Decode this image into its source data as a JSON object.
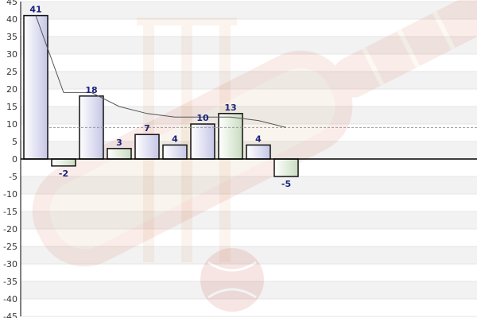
{
  "chart_data": {
    "type": "bar",
    "title": "",
    "xlabel": "",
    "ylabel": "",
    "ylim": [
      -45,
      45
    ],
    "ytick_step": 5,
    "grid": true,
    "values": [
      41,
      -2,
      18,
      3,
      7,
      4,
      10,
      13,
      4,
      -5
    ],
    "data_labels": [
      "41",
      "-2",
      "18",
      "3",
      "7",
      "4",
      "10",
      "13",
      "4",
      "-5"
    ],
    "bar_styles": [
      "blue",
      "green",
      "blue",
      "green",
      "blue",
      "blue",
      "blue",
      "green",
      "blue",
      "green"
    ],
    "trend_line": [
      41,
      19,
      19,
      15,
      13,
      12,
      12,
      12,
      11,
      9
    ],
    "average_line": 9,
    "colors": {
      "bar_blue_light": "#ffffff",
      "bar_blue_dark": "#c5c6e6",
      "bar_green_light": "#ffffff",
      "bar_green_dark": "#c9dcc0",
      "bar_stroke": "#111111",
      "grid_band": "#f2f2f2",
      "grid_line": "#e6e6e6",
      "zero_line": "#000000",
      "average_line": "#9a9a9a",
      "trend_line": "#555555",
      "data_label": "#1a237e"
    }
  }
}
